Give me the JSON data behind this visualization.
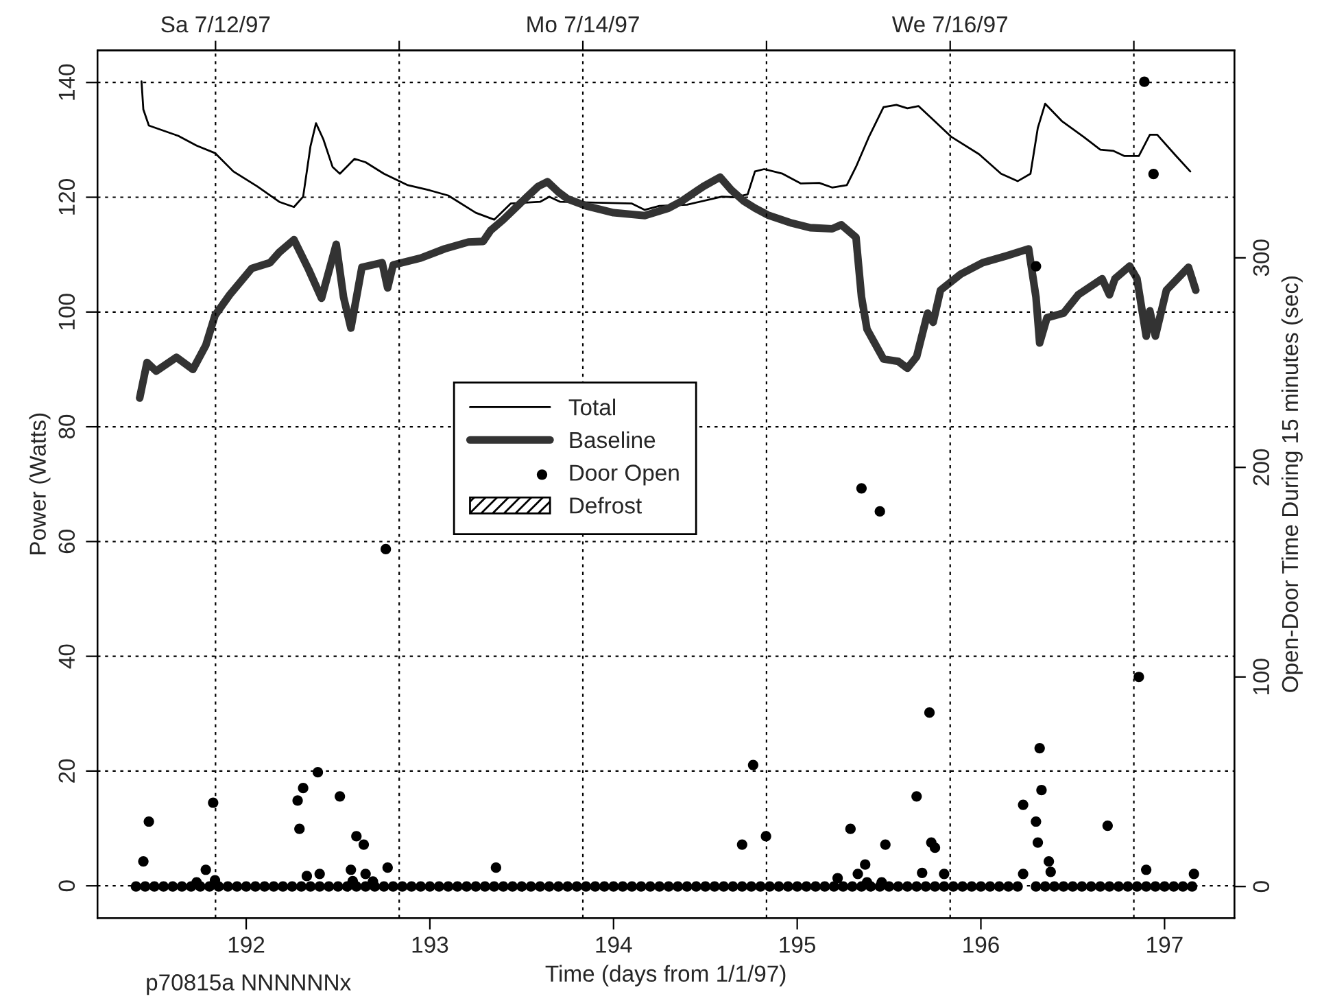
{
  "chart_data": {
    "type": "line",
    "xlabel": "Time (days from 1/1/97)",
    "ylabel": "Power (Watts)",
    "y2label": "Open-Door Time During 15 minutes (sec)",
    "annotations": [
      "p70815a NNNNNNx"
    ],
    "xlim": [
      191.19,
      197.38
    ],
    "xticks": [
      192,
      193,
      194,
      195,
      196,
      197
    ],
    "x2lim": [
      "1997-07-11T08:34",
      "1997-07-17T13:08"
    ],
    "x2ticks": [
      {
        "value": "1997-07-12",
        "label": "Sa 7/12/97"
      },
      {
        "value": "1997-07-13",
        "label": null
      },
      {
        "value": "1997-07-14",
        "label": "Mo 7/14/97"
      },
      {
        "value": "1997-07-15",
        "label": null
      },
      {
        "value": "1997-07-16",
        "label": "We 7/16/97"
      },
      {
        "value": "1997-07-17",
        "label": null
      }
    ],
    "ylim": [
      -5.6,
      145.6
    ],
    "yticks": [
      0,
      20,
      40,
      60,
      80,
      100,
      120,
      140
    ],
    "y2lim": [
      -15,
      399
    ],
    "y2ticks": [
      0,
      100,
      200,
      300
    ],
    "grid": true,
    "legend": "center",
    "line_style": "solid",
    "series": [
      {
        "name": "Total",
        "color": "#000000",
        "x": [
          191.43,
          191.44,
          191.47,
          191.63,
          191.73,
          191.83,
          191.93,
          192.06,
          192.18,
          192.26,
          192.31,
          192.35,
          192.38,
          192.42,
          192.47,
          192.51,
          192.59,
          192.65,
          192.75,
          192.88,
          193.0,
          193.1,
          193.25,
          193.35,
          193.44,
          193.6,
          193.65,
          193.71,
          194.1,
          194.17,
          194.25,
          194.4,
          194.59,
          194.66,
          194.73,
          194.77,
          194.82,
          194.92,
          195.02,
          195.12,
          195.19,
          195.27,
          195.32,
          195.39,
          195.47,
          195.54,
          195.6,
          195.66,
          195.74,
          195.84,
          195.99,
          196.11,
          196.2,
          196.27,
          196.31,
          196.35,
          196.44,
          196.56,
          196.65,
          196.72,
          196.78,
          196.86,
          196.92,
          196.96,
          197.06,
          197.14
        ],
        "values": [
          140.2,
          135.3,
          132.5,
          130.7,
          129,
          127.7,
          124.5,
          121.9,
          119.2,
          118.3,
          120.1,
          128.9,
          132.9,
          130.1,
          125.3,
          124.1,
          126.7,
          126.1,
          124.1,
          122.1,
          121.2,
          120.3,
          117.3,
          116.1,
          118.9,
          119.2,
          120.1,
          119.2,
          118.9,
          117.8,
          118.5,
          118.7,
          120.1,
          120,
          120.5,
          124.5,
          124.9,
          124.1,
          122.4,
          122.5,
          121.7,
          122.1,
          125.3,
          130.5,
          135.7,
          136.1,
          135.5,
          135.9,
          133.5,
          130.5,
          127.5,
          124.1,
          122.8,
          124.1,
          132.1,
          136.3,
          133.3,
          130.5,
          128.3,
          128.1,
          127.2,
          127.2,
          130.9,
          130.9,
          127.3,
          124.5
        ]
      },
      {
        "name": "Baseline",
        "color": "#333333",
        "x": [
          191.42,
          191.46,
          191.51,
          191.62,
          191.71,
          191.78,
          191.83,
          191.91,
          192.03,
          192.13,
          192.18,
          192.26,
          192.34,
          192.41,
          192.49,
          192.53,
          192.57,
          192.63,
          192.74,
          192.77,
          192.8,
          192.95,
          193.08,
          193.21,
          193.29,
          193.33,
          193.4,
          193.5,
          193.59,
          193.64,
          193.7,
          193.75,
          193.85,
          194.0,
          194.17,
          194.3,
          194.37,
          194.49,
          194.58,
          194.64,
          194.71,
          194.77,
          194.84,
          194.97,
          195.07,
          195.19,
          195.24,
          195.32,
          195.35,
          195.38,
          195.47,
          195.55,
          195.6,
          195.65,
          195.71,
          195.74,
          195.78,
          195.89,
          196.01,
          196.14,
          196.26,
          196.3,
          196.32,
          196.36,
          196.45,
          196.53,
          196.66,
          196.7,
          196.73,
          196.81,
          196.85,
          196.9,
          196.92,
          196.95,
          197.01,
          197.13,
          197.17
        ],
        "values": [
          85.0,
          91.2,
          89.7,
          92.1,
          90.0,
          94.2,
          99.4,
          103.0,
          107.6,
          108.6,
          110.4,
          112.6,
          107.4,
          102.4,
          111.8,
          102.6,
          97.2,
          107.8,
          108.6,
          104.2,
          108.2,
          109.4,
          111.0,
          112.2,
          112.3,
          114.2,
          116.1,
          119.2,
          121.9,
          122.7,
          120.9,
          119.7,
          118.5,
          117.3,
          116.8,
          118.1,
          119.3,
          121.9,
          123.5,
          121.3,
          119.3,
          118.1,
          116.9,
          115.5,
          114.7,
          114.5,
          115.2,
          113.0,
          102.6,
          97.0,
          91.8,
          91.4,
          90.2,
          92.2,
          99.8,
          98.2,
          103.8,
          106.6,
          108.6,
          109.8,
          111.0,
          102.6,
          94.6,
          99.0,
          99.8,
          103.0,
          105.8,
          103.0,
          105.8,
          108.0,
          105.8,
          95.8,
          100.2,
          95.8,
          103.8,
          107.8,
          103.8
        ]
      },
      {
        "name": "Door Open",
        "type": "scatter",
        "axis": "y2",
        "color": "#000000",
        "marker": "circle",
        "x": [
          191.44,
          191.47,
          191.78,
          191.82,
          191.73,
          191.83,
          192.28,
          192.29,
          192.31,
          192.39,
          192.33,
          192.4,
          192.51,
          192.57,
          192.6,
          192.64,
          192.65,
          192.58,
          192.69,
          192.76,
          192.77,
          193.36,
          194.7,
          194.76,
          194.83,
          195.22,
          195.29,
          195.33,
          195.37,
          195.38,
          195.35,
          195.45,
          195.46,
          195.48,
          195.65,
          195.68,
          195.72,
          195.73,
          195.75,
          195.8,
          196.23,
          196.23,
          196.3,
          196.31,
          196.32,
          196.33,
          196.37,
          196.38,
          196.3,
          196.69,
          196.86,
          196.89,
          196.94,
          196.9,
          197.16,
          191.4,
          191.45,
          191.5,
          191.55,
          191.6,
          191.65,
          191.7,
          191.75,
          191.8,
          191.85,
          191.9,
          191.95,
          192.0,
          192.05,
          192.1,
          192.15,
          192.2,
          192.25,
          192.3,
          192.35,
          192.4,
          192.45,
          192.5,
          192.55,
          192.6,
          192.65,
          192.7,
          192.75,
          192.8,
          192.85,
          192.9,
          192.95,
          193.0,
          193.05,
          193.1,
          193.15,
          193.2,
          193.25,
          193.3,
          193.35,
          193.4,
          193.45,
          193.5,
          193.55,
          193.6,
          193.65,
          193.7,
          193.75,
          193.8,
          193.85,
          193.9,
          193.95,
          194.0,
          194.05,
          194.1,
          194.15,
          194.2,
          194.25,
          194.3,
          194.35,
          194.4,
          194.45,
          194.5,
          194.55,
          194.6,
          194.65,
          194.7,
          194.75,
          194.8,
          194.85,
          194.9,
          194.95,
          195.0,
          195.05,
          195.1,
          195.15,
          195.2,
          195.25,
          195.3,
          195.35,
          195.4,
          195.45,
          195.5,
          195.55,
          195.6,
          195.65,
          195.7,
          195.75,
          195.8,
          195.85,
          195.9,
          195.95,
          196.0,
          196.05,
          196.1,
          196.15,
          196.2,
          196.3,
          196.35,
          196.4,
          196.45,
          196.5,
          196.55,
          196.6,
          196.65,
          196.7,
          196.75,
          196.8,
          196.85,
          196.9,
          196.95,
          197.0,
          197.05,
          197.1,
          197.15
        ],
        "values": [
          12,
          31,
          8,
          40,
          2,
          3,
          41,
          27.5,
          47,
          54.5,
          5,
          6,
          43,
          8,
          24,
          20,
          6,
          2.6,
          2.4,
          161,
          9,
          9,
          20,
          58,
          24,
          4,
          27.5,
          6,
          10.5,
          2,
          190,
          179,
          2,
          20,
          43,
          6.5,
          83,
          21,
          18.5,
          6,
          6,
          39,
          31,
          21,
          66,
          46,
          12,
          7,
          296,
          29,
          100,
          384,
          340,
          8,
          6,
          0,
          0,
          0,
          0,
          0,
          0,
          0,
          0,
          0,
          0,
          0,
          0,
          0,
          0,
          0,
          0,
          0,
          0,
          0,
          0,
          0,
          0,
          0,
          0,
          0,
          0,
          0,
          0,
          0,
          0,
          0,
          0,
          0,
          0,
          0,
          0,
          0,
          0,
          0,
          0,
          0,
          0,
          0,
          0,
          0,
          0,
          0,
          0,
          0,
          0,
          0,
          0,
          0,
          0,
          0,
          0,
          0,
          0,
          0,
          0,
          0,
          0,
          0,
          0,
          0,
          0,
          0,
          0,
          0,
          0,
          0,
          0,
          0,
          0,
          0,
          0,
          0,
          0,
          0,
          0,
          0,
          0,
          0,
          0,
          0,
          0,
          0,
          0,
          0,
          0,
          0,
          0,
          0,
          0,
          0,
          0,
          0,
          0,
          0,
          0,
          0,
          0,
          0,
          0,
          0,
          0,
          0,
          0,
          0,
          0,
          0,
          0,
          0,
          0,
          0
        ]
      },
      {
        "name": "Defrost",
        "type": "area",
        "color": "#000000"
      }
    ]
  }
}
